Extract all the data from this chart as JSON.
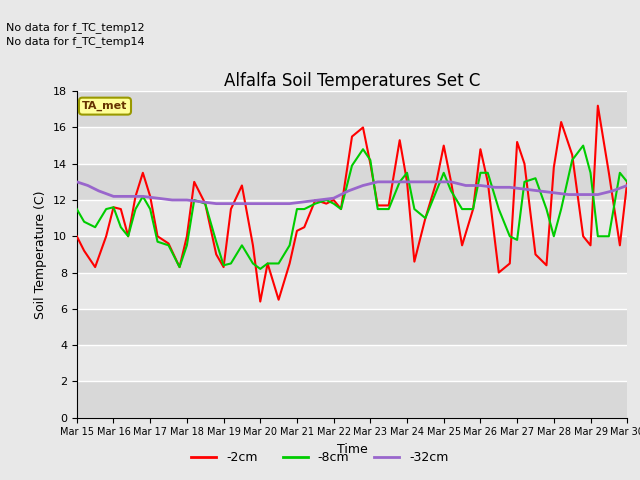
{
  "title": "Alfalfa Soil Temperatures Set C",
  "xlabel": "Time",
  "ylabel": "Soil Temperature (C)",
  "no_data_text": [
    "No data for f_TC_temp12",
    "No data for f_TC_temp14"
  ],
  "ta_met_label": "TA_met",
  "ylim": [
    0,
    18
  ],
  "yticks": [
    0,
    2,
    4,
    6,
    8,
    10,
    12,
    14,
    16,
    18
  ],
  "xtick_labels": [
    "Mar 15",
    "Mar 16",
    "Mar 17",
    "Mar 18",
    "Mar 19",
    "Mar 20",
    "Mar 21",
    "Mar 22",
    "Mar 23",
    "Mar 24",
    "Mar 25",
    "Mar 26",
    "Mar 27",
    "Mar 28",
    "Mar 29",
    "Mar 30"
  ],
  "background_color": "#e8e8e8",
  "plot_bg_color": "#e8e8e8",
  "grid_color": "#ffffff",
  "colors": {
    "red": "#ff0000",
    "green": "#00cc00",
    "purple": "#9966cc"
  },
  "legend": [
    {
      "label": "-2cm",
      "color": "#ff0000"
    },
    {
      "label": "-8cm",
      "color": "#00cc00"
    },
    {
      "label": "-32cm",
      "color": "#9966cc"
    }
  ],
  "x_red": [
    0,
    0.2,
    0.5,
    0.8,
    1.0,
    1.2,
    1.4,
    1.6,
    1.8,
    2.0,
    2.2,
    2.5,
    2.8,
    3.0,
    3.2,
    3.5,
    3.8,
    4.0,
    4.2,
    4.5,
    4.8,
    5.0,
    5.2,
    5.5,
    5.8,
    6.0,
    6.2,
    6.5,
    6.8,
    7.0,
    7.2,
    7.5,
    7.8,
    8.0,
    8.2,
    8.5,
    8.8,
    9.0,
    9.2,
    9.5,
    9.8,
    10.0,
    10.2,
    10.5,
    10.8,
    11.0,
    11.2,
    11.5,
    11.8,
    12.0,
    12.2,
    12.5,
    12.8,
    13.0,
    13.2,
    13.5,
    13.8,
    14.0,
    14.2,
    14.5,
    14.8,
    15.0
  ],
  "y_red": [
    10.0,
    9.2,
    8.3,
    10.0,
    11.6,
    11.5,
    10.0,
    12.2,
    13.5,
    12.2,
    10.0,
    9.6,
    8.3,
    10.0,
    13.0,
    11.8,
    9.0,
    8.3,
    11.5,
    12.8,
    9.5,
    6.4,
    8.5,
    6.5,
    8.5,
    10.3,
    10.5,
    12.0,
    11.8,
    12.0,
    11.5,
    15.5,
    16.0,
    14.0,
    11.7,
    11.7,
    15.3,
    13.0,
    8.6,
    11.0,
    13.0,
    15.0,
    13.0,
    9.5,
    11.5,
    14.8,
    13.0,
    8.0,
    8.5,
    15.2,
    14.0,
    9.0,
    8.4,
    13.8,
    16.3,
    14.5,
    10.0,
    9.5,
    17.2,
    13.5,
    9.5,
    13.0
  ],
  "x_green": [
    0,
    0.2,
    0.5,
    0.8,
    1.0,
    1.2,
    1.4,
    1.6,
    1.8,
    2.0,
    2.2,
    2.5,
    2.8,
    3.0,
    3.2,
    3.5,
    3.8,
    4.0,
    4.2,
    4.5,
    4.8,
    5.0,
    5.2,
    5.5,
    5.8,
    6.0,
    6.2,
    6.5,
    6.8,
    7.0,
    7.2,
    7.5,
    7.8,
    8.0,
    8.2,
    8.5,
    8.8,
    9.0,
    9.2,
    9.5,
    9.8,
    10.0,
    10.2,
    10.5,
    10.8,
    11.0,
    11.2,
    11.5,
    11.8,
    12.0,
    12.2,
    12.5,
    12.8,
    13.0,
    13.2,
    13.5,
    13.8,
    14.0,
    14.2,
    14.5,
    14.8,
    15.0
  ],
  "y_green": [
    11.5,
    10.8,
    10.5,
    11.5,
    11.6,
    10.5,
    10.0,
    11.5,
    12.2,
    11.5,
    9.7,
    9.5,
    8.3,
    9.5,
    12.0,
    11.8,
    9.7,
    8.4,
    8.5,
    9.5,
    8.5,
    8.2,
    8.5,
    8.5,
    9.5,
    11.5,
    11.5,
    11.8,
    12.0,
    11.8,
    11.5,
    13.9,
    14.8,
    14.2,
    11.5,
    11.5,
    13.0,
    13.5,
    11.5,
    11.0,
    12.5,
    13.5,
    12.5,
    11.5,
    11.5,
    13.5,
    13.5,
    11.5,
    10.0,
    9.8,
    13.0,
    13.2,
    11.5,
    10.0,
    11.5,
    14.2,
    15.0,
    13.5,
    10.0,
    10.0,
    13.5,
    13.0
  ],
  "x_purple": [
    0,
    0.3,
    0.6,
    1.0,
    1.4,
    1.8,
    2.2,
    2.6,
    3.0,
    3.4,
    3.8,
    4.2,
    4.6,
    5.0,
    5.4,
    5.8,
    6.2,
    6.6,
    7.0,
    7.4,
    7.8,
    8.2,
    8.6,
    9.0,
    9.4,
    9.8,
    10.2,
    10.6,
    11.0,
    11.4,
    11.8,
    12.2,
    12.6,
    13.0,
    13.4,
    13.8,
    14.2,
    14.6,
    15.0
  ],
  "y_purple": [
    13.0,
    12.8,
    12.5,
    12.2,
    12.2,
    12.2,
    12.1,
    12.0,
    12.0,
    11.9,
    11.8,
    11.8,
    11.8,
    11.8,
    11.8,
    11.8,
    11.9,
    12.0,
    12.1,
    12.5,
    12.8,
    13.0,
    13.0,
    13.0,
    13.0,
    13.0,
    13.0,
    12.8,
    12.8,
    12.7,
    12.7,
    12.6,
    12.5,
    12.4,
    12.3,
    12.3,
    12.3,
    12.5,
    12.8
  ]
}
